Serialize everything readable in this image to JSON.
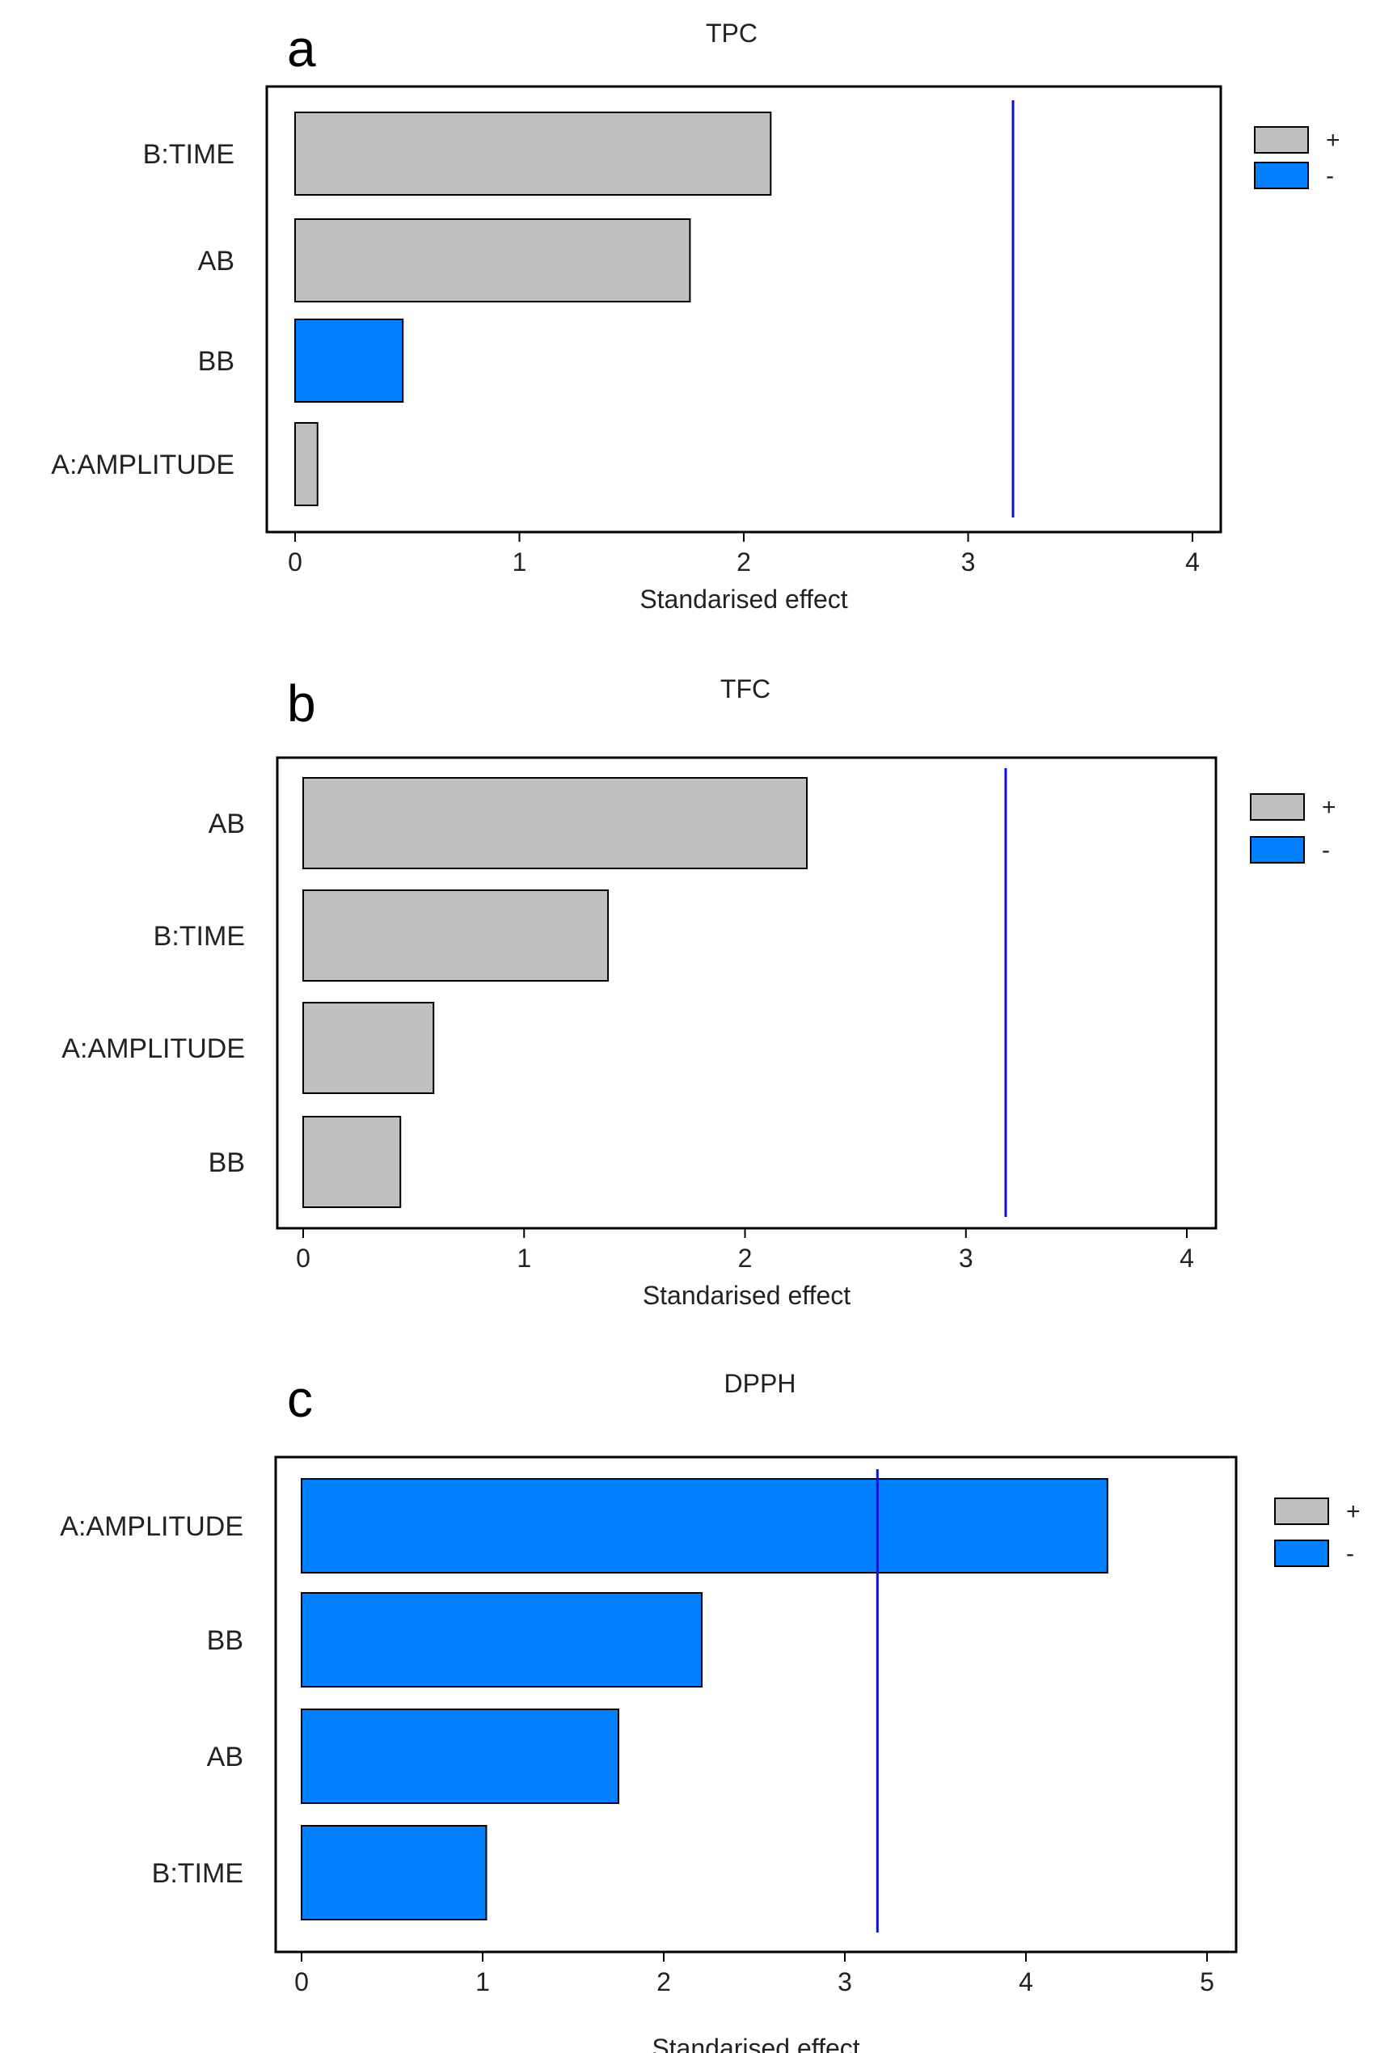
{
  "figure": {
    "panels": [
      "a",
      "b",
      "c"
    ]
  },
  "colors": {
    "positive": "#c0c0c0",
    "negative": "#0080ff",
    "reference_line": "#1010d8",
    "frame": "#000000"
  },
  "chart_data": [
    {
      "type": "bar",
      "orientation": "horizontal",
      "panel": "a",
      "title": "TPC",
      "xlabel": "Standarised effect",
      "ylabel": "",
      "categories": [
        "B:TIME",
        "AB",
        "BB",
        "A:AMPLITUDE"
      ],
      "values": [
        2.12,
        1.76,
        0.48,
        0.1
      ],
      "signs": [
        "+",
        "+",
        "-",
        "+"
      ],
      "xlim": [
        0,
        4
      ],
      "xticks": [
        "0",
        "1",
        "2",
        "3",
        "4"
      ],
      "reference_line": 3.2,
      "legend": [
        {
          "label": "+",
          "color": "#c0c0c0"
        },
        {
          "label": "-",
          "color": "#0080ff"
        }
      ],
      "legend_position": "right"
    },
    {
      "type": "bar",
      "orientation": "horizontal",
      "panel": "b",
      "title": "TFC",
      "xlabel": "Standarised effect",
      "ylabel": "",
      "categories": [
        "AB",
        "B:TIME",
        "A:AMPLITUDE",
        "BB"
      ],
      "values": [
        2.28,
        1.38,
        0.59,
        0.44
      ],
      "signs": [
        "+",
        "+",
        "+",
        "+"
      ],
      "xlim": [
        0,
        4
      ],
      "xticks": [
        "0",
        "1",
        "2",
        "3",
        "4"
      ],
      "reference_line": 3.18,
      "legend": [
        {
          "label": "+",
          "color": "#c0c0c0"
        },
        {
          "label": "-",
          "color": "#0080ff"
        }
      ],
      "legend_position": "right"
    },
    {
      "type": "bar",
      "orientation": "horizontal",
      "panel": "c",
      "title": "DPPH",
      "xlabel": "Standarised effect",
      "ylabel": "",
      "categories": [
        "A:AMPLITUDE",
        "BB",
        "AB",
        "B:TIME"
      ],
      "values": [
        4.45,
        2.21,
        1.75,
        1.02
      ],
      "signs": [
        "-",
        "-",
        "-",
        "-"
      ],
      "xlim": [
        0,
        5
      ],
      "xticks": [
        "0",
        "1",
        "2",
        "3",
        "4",
        "5"
      ],
      "reference_line": 3.18,
      "legend": [
        {
          "label": "+",
          "color": "#c0c0c0"
        },
        {
          "label": "-",
          "color": "#0080ff"
        }
      ],
      "legend_position": "right"
    }
  ]
}
